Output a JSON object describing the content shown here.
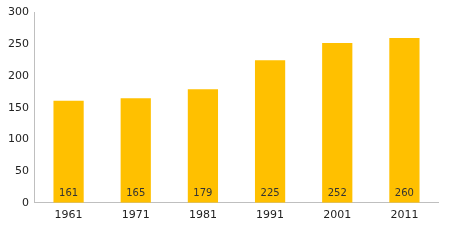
{
  "chart_data": {
    "type": "bar",
    "categories": [
      "1961",
      "1971",
      "1981",
      "1991",
      "2001",
      "2011"
    ],
    "values": [
      161,
      165,
      179,
      225,
      252,
      260
    ],
    "color": "#ffc000",
    "ylim": [
      0,
      300
    ],
    "yticks": [
      0,
      50,
      100,
      150,
      200,
      250,
      300
    ],
    "grid": false,
    "data_labels": true
  }
}
